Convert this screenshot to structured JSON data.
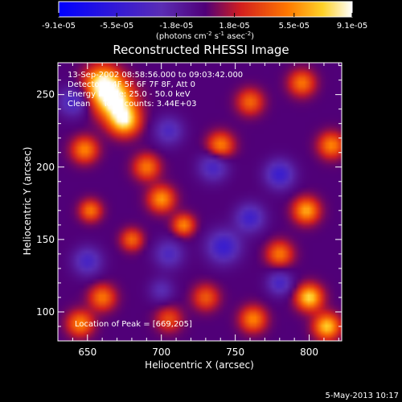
{
  "colorbar": {
    "tick_labels": [
      "-9.1e-05",
      "-5.5e-05",
      "-1.8e-05",
      "1.8e-05",
      "5.5e-05",
      "9.1e-05"
    ],
    "tick_values": [
      -9.1e-05,
      -5.5e-05,
      -1.8e-05,
      1.8e-05,
      5.5e-05,
      9.1e-05
    ],
    "range": [
      -9.1e-05,
      9.1e-05
    ],
    "unit_label_parts": [
      "(photons cm",
      "-2",
      " s",
      "-1",
      " asec",
      "-2",
      ")"
    ]
  },
  "chart_data": {
    "type": "heatmap",
    "title": "Reconstructed RHESSI Image",
    "xlabel": "Heliocentric X (arcsec)",
    "ylabel": "Heliocentric Y (arcsec)",
    "xlim": [
      630,
      822
    ],
    "ylim": [
      80,
      272
    ],
    "x_ticks": [
      650,
      700,
      750,
      800
    ],
    "y_ticks": [
      100,
      150,
      200,
      250
    ],
    "info_lines": [
      "13-Sep-2002 08:58:56.000 to 09:03:42.000",
      "Detectors: 4F 5F 6F 7F 8F, Att 0",
      "Energy Range: 25.0 - 50.0 keV",
      "Clean     Total counts: 3.44E+03"
    ],
    "peak_label": "Location of Peak = [669,205]",
    "peak_location": [
      669,
      205
    ],
    "colormap": "rhessi-heat",
    "blobs": [
      {
        "x": 668,
        "y": 246,
        "a": 1.0,
        "s": 9
      },
      {
        "x": 660,
        "y": 258,
        "a": 0.9,
        "s": 8
      },
      {
        "x": 675,
        "y": 232,
        "a": 0.85,
        "s": 7
      },
      {
        "x": 648,
        "y": 212,
        "a": 0.6,
        "s": 6
      },
      {
        "x": 690,
        "y": 200,
        "a": 0.55,
        "s": 6
      },
      {
        "x": 700,
        "y": 178,
        "a": 0.65,
        "s": 6
      },
      {
        "x": 715,
        "y": 160,
        "a": 0.6,
        "s": 5
      },
      {
        "x": 680,
        "y": 150,
        "a": 0.5,
        "s": 5
      },
      {
        "x": 652,
        "y": 170,
        "a": 0.55,
        "s": 5
      },
      {
        "x": 740,
        "y": 215,
        "a": 0.6,
        "s": 6
      },
      {
        "x": 760,
        "y": 245,
        "a": 0.5,
        "s": 6
      },
      {
        "x": 795,
        "y": 258,
        "a": 0.55,
        "s": 6
      },
      {
        "x": 815,
        "y": 215,
        "a": 0.6,
        "s": 6
      },
      {
        "x": 798,
        "y": 170,
        "a": 0.7,
        "s": 6
      },
      {
        "x": 780,
        "y": 140,
        "a": 0.55,
        "s": 6
      },
      {
        "x": 800,
        "y": 110,
        "a": 0.85,
        "s": 6
      },
      {
        "x": 812,
        "y": 90,
        "a": 0.8,
        "s": 6
      },
      {
        "x": 762,
        "y": 95,
        "a": 0.6,
        "s": 6
      },
      {
        "x": 730,
        "y": 110,
        "a": 0.45,
        "s": 6
      },
      {
        "x": 660,
        "y": 110,
        "a": 0.55,
        "s": 6
      },
      {
        "x": 645,
        "y": 92,
        "a": 0.6,
        "s": 6
      },
      {
        "x": 705,
        "y": 95,
        "a": 0.4,
        "s": 6
      },
      {
        "x": 742,
        "y": 145,
        "a": -0.55,
        "s": 8
      },
      {
        "x": 760,
        "y": 165,
        "a": -0.5,
        "s": 7
      },
      {
        "x": 735,
        "y": 200,
        "a": -0.45,
        "s": 7
      },
      {
        "x": 780,
        "y": 195,
        "a": -0.55,
        "s": 7
      },
      {
        "x": 650,
        "y": 135,
        "a": -0.45,
        "s": 7
      },
      {
        "x": 705,
        "y": 140,
        "a": -0.4,
        "s": 7
      },
      {
        "x": 705,
        "y": 225,
        "a": -0.4,
        "s": 7
      },
      {
        "x": 640,
        "y": 245,
        "a": -0.45,
        "s": 7
      },
      {
        "x": 780,
        "y": 120,
        "a": -0.45,
        "s": 6
      },
      {
        "x": 700,
        "y": 115,
        "a": -0.3,
        "s": 6
      }
    ]
  },
  "footer": {
    "timestamp": "5-May-2013 10:17"
  }
}
